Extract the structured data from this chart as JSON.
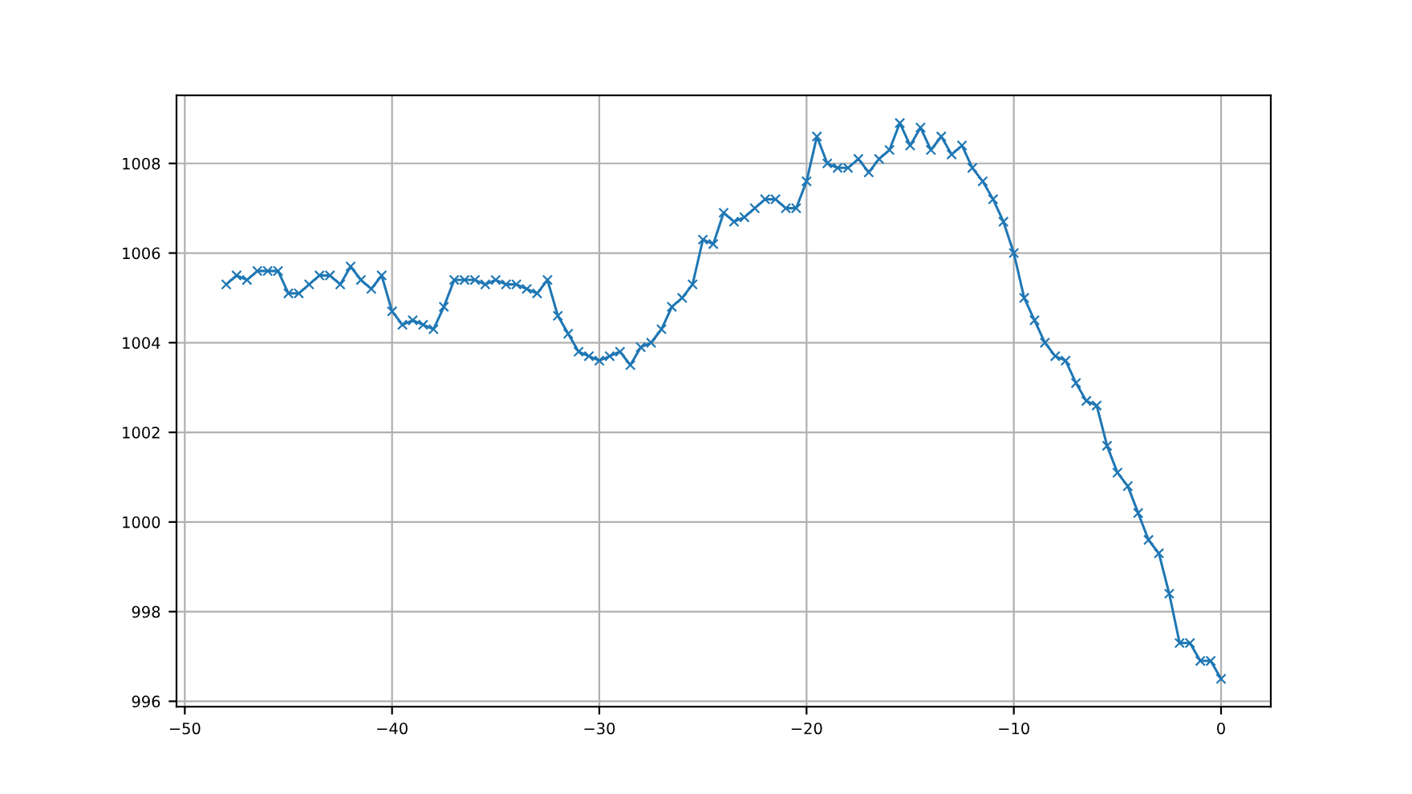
{
  "chart_data": {
    "type": "line",
    "x": [
      -48,
      -47.5,
      -47,
      -46.5,
      -46,
      -45.5,
      -45,
      -44.5,
      -44,
      -43.5,
      -43,
      -42.5,
      -42,
      -41.5,
      -41,
      -40.5,
      -40,
      -39.5,
      -39,
      -38.5,
      -38,
      -37.5,
      -37,
      -36.5,
      -36,
      -35.5,
      -35,
      -34.5,
      -34,
      -33.5,
      -33,
      -32.5,
      -32,
      -31.5,
      -31,
      -30.5,
      -30,
      -29.5,
      -29,
      -28.5,
      -28,
      -27.5,
      -27,
      -26.5,
      -26,
      -25.5,
      -25,
      -24.5,
      -24,
      -23.5,
      -23,
      -22.5,
      -22,
      -21.5,
      -21,
      -20.5,
      -20,
      -19.5,
      -19,
      -18.5,
      -18,
      -17.5,
      -17,
      -16.5,
      -16,
      -15.5,
      -15,
      -14.5,
      -14,
      -13.5,
      -13,
      -12.5,
      -12,
      -11.5,
      -11,
      -10.5,
      -10,
      -9.5,
      -9,
      -8.5,
      -8,
      -7.5,
      -7,
      -6.5,
      -6,
      -5.5,
      -5,
      -4.5,
      -4,
      -3.5,
      -3,
      -2.5,
      -2,
      -1.5,
      -1,
      -0.5,
      0
    ],
    "series": [
      {
        "color": "#1f77b4",
        "values": [
          1005.3,
          1005.5,
          1005.4,
          1005.6,
          1005.6,
          1005.6,
          1005.1,
          1005.1,
          1005.3,
          1005.5,
          1005.5,
          1005.3,
          1005.7,
          1005.4,
          1005.2,
          1005.5,
          1004.7,
          1004.4,
          1004.5,
          1004.4,
          1004.3,
          1004.8,
          1005.4,
          1005.4,
          1005.4,
          1005.3,
          1005.4,
          1005.3,
          1005.3,
          1005.2,
          1005.1,
          1005.4,
          1004.6,
          1004.2,
          1003.8,
          1003.7,
          1003.6,
          1003.7,
          1003.8,
          1003.5,
          1003.9,
          1004.0,
          1004.3,
          1004.8,
          1005.0,
          1005.3,
          1006.3,
          1006.2,
          1006.9,
          1006.7,
          1006.8,
          1007.0,
          1007.2,
          1007.2,
          1007.0,
          1007.0,
          1007.6,
          1008.6,
          1008.0,
          1007.9,
          1007.9,
          1008.1,
          1007.8,
          1008.1,
          1008.3,
          1008.9,
          1008.4,
          1008.8,
          1008.3,
          1008.6,
          1008.2,
          1008.4,
          1007.9,
          1007.6,
          1007.2,
          1006.7,
          1006.0,
          1005.0,
          1004.5,
          1004.0,
          1003.7,
          1003.6,
          1003.1,
          1002.7,
          1002.6,
          1001.7,
          1001.1,
          1000.8,
          1000.2,
          999.6,
          999.3,
          998.4,
          997.3,
          997.3,
          996.9,
          996.9,
          996.5
        ]
      }
    ],
    "xlim": [
      -50.4,
      2.4
    ],
    "xticks": [
      -50,
      -40,
      -30,
      -20,
      -10,
      0
    ],
    "ylim": [
      995.88,
      1009.52
    ],
    "yticks": [
      996,
      998,
      1000,
      1002,
      1004,
      1006,
      1008
    ],
    "grid": true,
    "marker": "cross",
    "line_style": "solid"
  }
}
